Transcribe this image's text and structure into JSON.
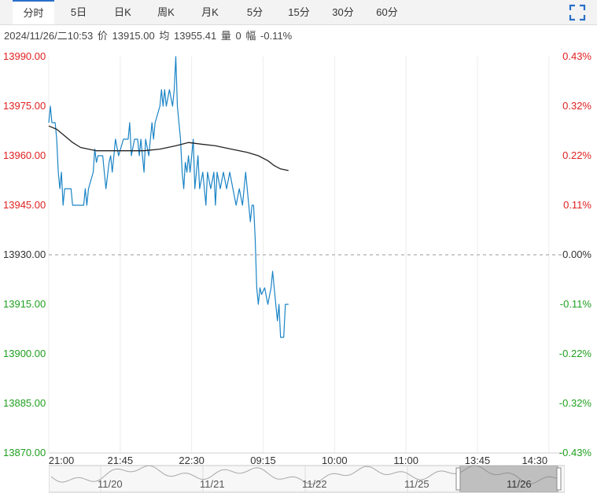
{
  "tabs": [
    {
      "label": "分时",
      "active": true
    },
    {
      "label": "5日",
      "active": false
    },
    {
      "label": "日K",
      "active": false
    },
    {
      "label": "周K",
      "active": false
    },
    {
      "label": "月K",
      "active": false
    },
    {
      "label": "5分",
      "active": false
    },
    {
      "label": "15分",
      "active": false
    },
    {
      "label": "30分",
      "active": false
    },
    {
      "label": "60分",
      "active": false
    }
  ],
  "info": {
    "datetime": "2024/11/26/二10:53",
    "price_label": "价",
    "price": "13915.00",
    "avg_label": "均",
    "avg": "13955.41",
    "volume_label": "量",
    "volume": "0",
    "change_label": "幅",
    "change": "-0.11%"
  },
  "colors": {
    "up": "#e02020",
    "down": "#20a020",
    "price_line": "#1a84c6",
    "avg_line": "#222222",
    "accent": "#2a6fc9"
  },
  "chart_data": {
    "type": "line",
    "ylim": [
      13870,
      13990
    ],
    "y_ticks": [
      "13990.00",
      "13975.00",
      "13960.00",
      "13945.00",
      "13930.00",
      "13915.00",
      "13900.00",
      "13885.00",
      "13870.00"
    ],
    "pct_ticks": [
      "0.43%",
      "0.32%",
      "0.22%",
      "0.11%",
      "0.00%",
      "-0.11%",
      "-0.22%",
      "-0.32%",
      "-0.43%"
    ],
    "baseline": 13930,
    "x_ticks": [
      "21:00",
      "21:45",
      "22:30",
      "09:15",
      "10:00",
      "11:00",
      "13:45",
      "14:30"
    ],
    "x_tick_index": [
      0,
      45,
      90,
      135,
      180,
      225,
      270,
      315
    ],
    "series": [
      {
        "key": "price",
        "points": [
          [
            0,
            13970
          ],
          [
            1,
            13975
          ],
          [
            2,
            13970
          ],
          [
            4,
            13970
          ],
          [
            5,
            13965
          ],
          [
            6,
            13955
          ],
          [
            7,
            13950
          ],
          [
            8,
            13955
          ],
          [
            9,
            13945
          ],
          [
            10,
            13950
          ],
          [
            11,
            13950
          ],
          [
            14,
            13950
          ],
          [
            15,
            13945
          ],
          [
            18,
            13945
          ],
          [
            22,
            13945
          ],
          [
            23,
            13950
          ],
          [
            24,
            13945
          ],
          [
            25,
            13950
          ],
          [
            28,
            13955
          ],
          [
            29,
            13962
          ],
          [
            30,
            13958
          ],
          [
            31,
            13960
          ],
          [
            34,
            13960
          ],
          [
            35,
            13955
          ],
          [
            36,
            13950
          ],
          [
            38,
            13958
          ],
          [
            39,
            13960
          ],
          [
            40,
            13955
          ],
          [
            41,
            13960
          ],
          [
            42,
            13965
          ],
          [
            44,
            13960
          ],
          [
            47,
            13965
          ],
          [
            50,
            13965
          ],
          [
            51,
            13970
          ],
          [
            52,
            13960
          ],
          [
            54,
            13965
          ],
          [
            56,
            13965
          ],
          [
            57,
            13960
          ],
          [
            58,
            13965
          ],
          [
            60,
            13955
          ],
          [
            61,
            13965
          ],
          [
            63,
            13960
          ],
          [
            65,
            13970
          ],
          [
            66,
            13965
          ],
          [
            67,
            13970
          ],
          [
            70,
            13975
          ],
          [
            71,
            13980
          ],
          [
            72,
            13975
          ],
          [
            73,
            13980
          ],
          [
            74,
            13975
          ],
          [
            76,
            13980
          ],
          [
            78,
            13975
          ],
          [
            79,
            13980
          ],
          [
            80,
            13990
          ],
          [
            81,
            13975
          ],
          [
            82,
            13970
          ],
          [
            83,
            13965
          ],
          [
            84,
            13955
          ],
          [
            85,
            13950
          ],
          [
            86,
            13958
          ],
          [
            87,
            13955
          ],
          [
            88,
            13960
          ],
          [
            89,
            13955
          ],
          [
            90,
            13960
          ],
          [
            91,
            13965
          ],
          [
            92,
            13950
          ],
          [
            94,
            13960
          ],
          [
            95,
            13950
          ],
          [
            97,
            13955
          ],
          [
            98,
            13950
          ],
          [
            99,
            13945
          ],
          [
            100,
            13955
          ],
          [
            102,
            13950
          ],
          [
            104,
            13955
          ],
          [
            105,
            13945
          ],
          [
            106,
            13955
          ],
          [
            108,
            13950
          ],
          [
            110,
            13955
          ],
          [
            112,
            13950
          ],
          [
            114,
            13955
          ],
          [
            116,
            13950
          ],
          [
            118,
            13945
          ],
          [
            120,
            13950
          ],
          [
            122,
            13945
          ],
          [
            124,
            13955
          ],
          [
            125,
            13950
          ],
          [
            127,
            13940
          ],
          [
            128,
            13945
          ],
          [
            129,
            13945
          ],
          [
            130,
            13935
          ],
          [
            131,
            13920
          ],
          [
            132,
            13915
          ],
          [
            133,
            13920
          ],
          [
            134,
            13918
          ],
          [
            136,
            13920
          ],
          [
            138,
            13915
          ],
          [
            140,
            13920
          ],
          [
            141,
            13925
          ],
          [
            143,
            13915
          ],
          [
            144,
            13910
          ],
          [
            145,
            13915
          ],
          [
            146,
            13905
          ],
          [
            148,
            13905
          ],
          [
            149,
            13915
          ],
          [
            151,
            13915
          ]
        ]
      },
      {
        "key": "avg",
        "points": [
          [
            0,
            13969
          ],
          [
            5,
            13968
          ],
          [
            10,
            13966
          ],
          [
            15,
            13964
          ],
          [
            20,
            13962.5
          ],
          [
            25,
            13962
          ],
          [
            30,
            13961.5
          ],
          [
            40,
            13961.5
          ],
          [
            50,
            13961.5
          ],
          [
            60,
            13961.5
          ],
          [
            70,
            13962
          ],
          [
            80,
            13963
          ],
          [
            88,
            13964
          ],
          [
            96,
            13963.5
          ],
          [
            105,
            13963
          ],
          [
            115,
            13962
          ],
          [
            125,
            13961
          ],
          [
            132,
            13960
          ],
          [
            138,
            13958.5
          ],
          [
            142,
            13957
          ],
          [
            146,
            13956
          ],
          [
            151,
            13955.5
          ]
        ]
      }
    ]
  },
  "navigator": {
    "date_labels": [
      "11/20",
      "11/21",
      "11/22",
      "11/25",
      "11/26"
    ]
  },
  "icons": {
    "fullscreen": "fullscreen-icon"
  }
}
